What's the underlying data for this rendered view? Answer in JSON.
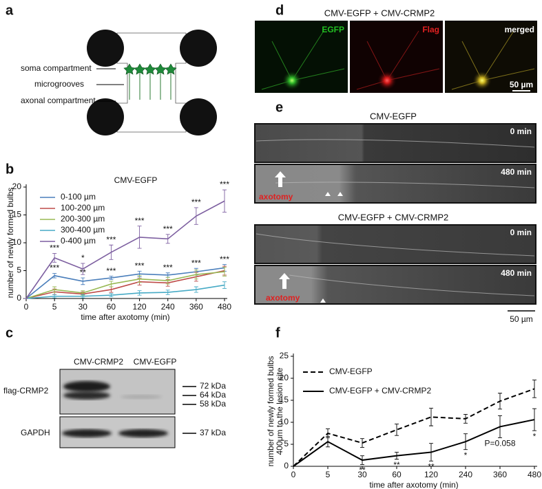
{
  "panel_letters": [
    "a",
    "b",
    "c",
    "d",
    "e",
    "f"
  ],
  "schematic": {
    "labels": [
      "soma compartment",
      "microgrooves",
      "axonal compartment"
    ]
  },
  "chart_data": [
    {
      "type": "line",
      "legend_title": "CMV-EGFP",
      "xlabel": "time after axotomy (min)",
      "ylabel": [
        "number of newly formed bulbs"
      ],
      "categories": [
        "0",
        "5",
        "30",
        "60",
        "120",
        "240",
        "360",
        "480"
      ],
      "ylim": [
        0,
        20
      ],
      "yticks": [
        0,
        5,
        10,
        15,
        20
      ],
      "legend": "top-left",
      "series": [
        {
          "name": "0-100 µm",
          "color": "#4a7ebb",
          "line_style": "solid",
          "values": [
            0,
            4.1,
            3.1,
            3.7,
            4.4,
            4.2,
            4.8,
            5.5
          ],
          "errors": [
            0,
            0.4,
            0.6,
            0.3,
            0.5,
            0.4,
            0.6,
            0.6
          ],
          "significance": [
            null,
            "***",
            "**",
            "***",
            "***",
            "***",
            "***",
            "***"
          ],
          "significance_position": "above"
        },
        {
          "name": "100-200 µm",
          "color": "#be4b48",
          "line_style": "solid",
          "values": [
            0,
            1.2,
            0.8,
            1.6,
            3.0,
            2.8,
            3.9,
            5.0
          ],
          "errors": [
            0,
            0.5,
            0.4,
            0.5,
            0.6,
            0.6,
            0.8,
            0.8
          ]
        },
        {
          "name": "200-300 µm",
          "color": "#98b954",
          "line_style": "solid",
          "values": [
            0,
            1.6,
            1.0,
            2.6,
            3.5,
            3.2,
            4.3,
            4.8
          ],
          "errors": [
            0,
            0.5,
            0.4,
            0.5,
            0.6,
            0.6,
            0.8,
            0.8
          ]
        },
        {
          "name": "300-400 µm",
          "color": "#46aac5",
          "line_style": "solid",
          "values": [
            0,
            0.4,
            0.4,
            0.6,
            1.0,
            1.1,
            1.6,
            2.4
          ],
          "errors": [
            0,
            0.3,
            0.3,
            0.3,
            0.4,
            0.4,
            0.5,
            0.6
          ]
        },
        {
          "name": "0-400 µm",
          "color": "#7d5fa0",
          "line_style": "solid",
          "values": [
            0,
            7.3,
            5.3,
            8.3,
            11.0,
            10.7,
            14.8,
            17.5
          ],
          "errors": [
            0,
            0.8,
            1.0,
            1.3,
            2.0,
            0.8,
            1.5,
            2.0
          ],
          "significance": [
            null,
            "***",
            "*",
            "***",
            "***",
            "***",
            "***",
            "***"
          ],
          "significance_position": "above"
        }
      ]
    },
    {
      "type": "line",
      "xlabel": "time after axotomy (min)",
      "ylabel": [
        "number of newly formed bulbs",
        "400μm to the lesion site"
      ],
      "categories": [
        "0",
        "5",
        "30",
        "60",
        "120",
        "240",
        "360",
        "480"
      ],
      "ylim": [
        0,
        25
      ],
      "yticks": [
        0,
        5,
        10,
        15,
        20,
        25
      ],
      "legend": "top-left",
      "series": [
        {
          "name": "CMV-EGFP",
          "color": "#000000",
          "line_style": "dashed",
          "values": [
            0,
            7.5,
            5.3,
            8.3,
            11.2,
            10.8,
            14.8,
            17.6
          ],
          "errors": [
            0,
            1.0,
            1.0,
            1.3,
            2.0,
            1.0,
            1.8,
            2.0
          ]
        },
        {
          "name": "CMV-EGFP + CMV-CRMP2",
          "color": "#000000",
          "line_style": "solid",
          "values": [
            0,
            5.6,
            1.4,
            2.4,
            3.2,
            5.6,
            9.0,
            10.6
          ],
          "errors": [
            0,
            1.2,
            1.0,
            0.8,
            2.0,
            1.8,
            2.5,
            2.5
          ],
          "significance": [
            null,
            null,
            "**",
            "**",
            "**",
            "*",
            "P=0.058",
            "*"
          ],
          "significance_position": "below"
        }
      ]
    }
  ],
  "blot": {
    "lanes": [
      "CMV-CRMP2",
      "CMV-EGFP"
    ],
    "rows": [
      "flag-CRMP2",
      "GAPDH"
    ],
    "markers": [
      "72 kDa",
      "64 kDa",
      "58 kDa",
      "37 kDa"
    ]
  },
  "images": {
    "title": "CMV-EGFP + CMV-CRMP2",
    "channels": [
      "EGFP",
      "Flag",
      "merged"
    ],
    "scale": "50 µm"
  },
  "timelapse": {
    "groups": [
      {
        "title": "CMV-EGFP",
        "frames": [
          "0 min",
          "480 min"
        ],
        "marker": "axotomy"
      },
      {
        "title": "CMV-EGFP + CMV-CRMP2",
        "frames": [
          "0 min",
          "480 min"
        ],
        "marker": "axotomy"
      }
    ],
    "scale": "50 µm"
  }
}
